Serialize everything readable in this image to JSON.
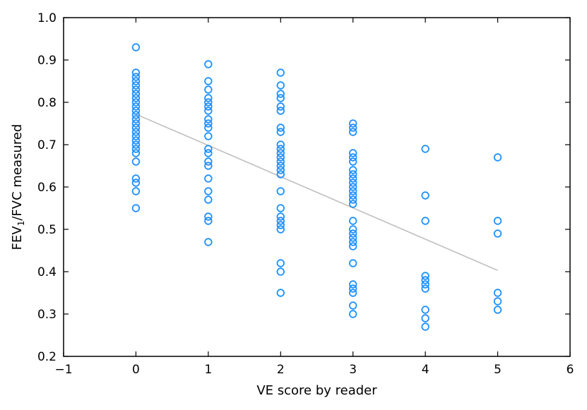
{
  "chart_data": {
    "type": "scatter",
    "title": "",
    "xlabel": "VE score by reader",
    "ylabel_parts": {
      "base": "FEV",
      "subscript": "1",
      "rest": "/FVC measured"
    },
    "xlim": [
      -1,
      6
    ],
    "ylim": [
      0.2,
      1.0
    ],
    "xticks": [
      -1,
      0,
      1,
      2,
      3,
      4,
      5,
      6
    ],
    "xtick_labels": [
      "−1",
      "0",
      "1",
      "2",
      "3",
      "4",
      "5",
      "6"
    ],
    "yticks": [
      0.2,
      0.3,
      0.4,
      0.5,
      0.6,
      0.7,
      0.8,
      0.9,
      1.0
    ],
    "ytick_labels": [
      "0.2",
      "0.3",
      "0.4",
      "0.5",
      "0.6",
      "0.7",
      "0.8",
      "0.9",
      "1.0"
    ],
    "grid": false,
    "legend": "none",
    "marker_color": "#1E90FF",
    "trend_color": "#BFBFBF",
    "series": [
      {
        "x": 0,
        "y": [
          0.93,
          0.87,
          0.86,
          0.85,
          0.84,
          0.83,
          0.82,
          0.81,
          0.8,
          0.79,
          0.78,
          0.77,
          0.76,
          0.75,
          0.74,
          0.73,
          0.72,
          0.71,
          0.7,
          0.69,
          0.68,
          0.66,
          0.62,
          0.61,
          0.59,
          0.55
        ]
      },
      {
        "x": 1,
        "y": [
          0.89,
          0.85,
          0.83,
          0.81,
          0.8,
          0.79,
          0.78,
          0.76,
          0.75,
          0.74,
          0.72,
          0.69,
          0.68,
          0.66,
          0.65,
          0.62,
          0.59,
          0.57,
          0.53,
          0.52,
          0.47
        ]
      },
      {
        "x": 2,
        "y": [
          0.87,
          0.84,
          0.82,
          0.81,
          0.79,
          0.78,
          0.74,
          0.73,
          0.7,
          0.69,
          0.68,
          0.67,
          0.66,
          0.65,
          0.64,
          0.63,
          0.59,
          0.55,
          0.53,
          0.52,
          0.51,
          0.5,
          0.42,
          0.4,
          0.35
        ]
      },
      {
        "x": 3,
        "y": [
          0.75,
          0.74,
          0.73,
          0.68,
          0.67,
          0.66,
          0.64,
          0.63,
          0.62,
          0.61,
          0.6,
          0.59,
          0.58,
          0.57,
          0.56,
          0.52,
          0.5,
          0.49,
          0.48,
          0.47,
          0.46,
          0.42,
          0.37,
          0.36,
          0.35,
          0.32,
          0.3
        ]
      },
      {
        "x": 4,
        "y": [
          0.69,
          0.58,
          0.52,
          0.39,
          0.38,
          0.37,
          0.36,
          0.31,
          0.29,
          0.27
        ]
      },
      {
        "x": 5,
        "y": [
          0.67,
          0.52,
          0.49,
          0.35,
          0.33,
          0.31
        ]
      }
    ],
    "trendline": {
      "x": [
        0,
        5
      ],
      "y": [
        0.772,
        0.403
      ]
    }
  }
}
